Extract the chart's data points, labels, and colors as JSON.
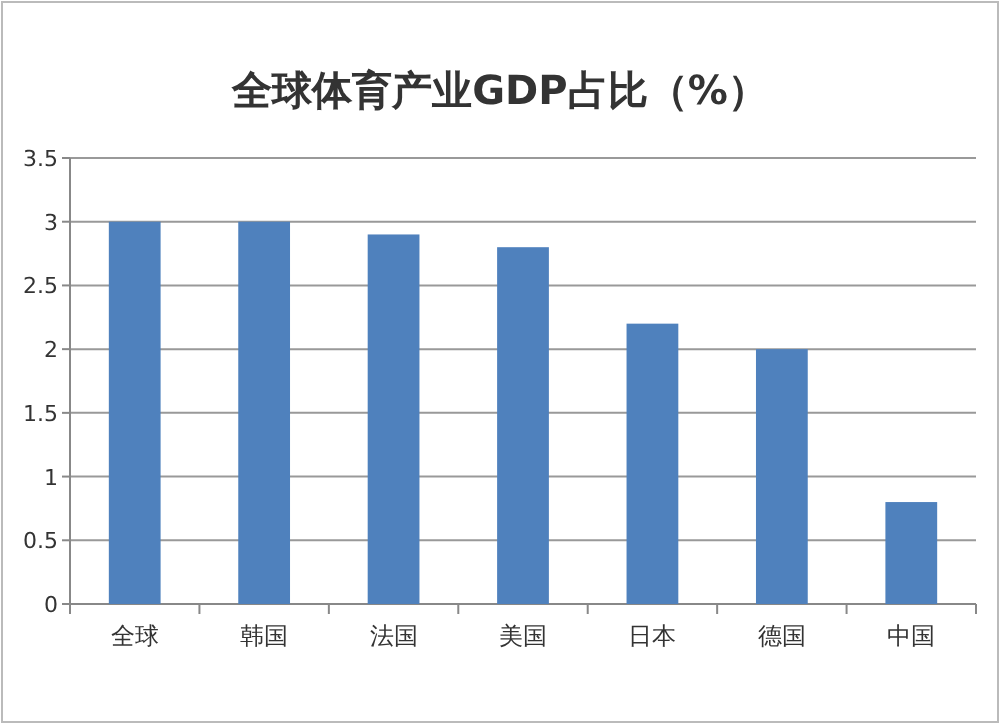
{
  "chart_data": {
    "type": "bar",
    "title": "全球体育产业GDP占比（%）",
    "categories": [
      "全球",
      "韩国",
      "法国",
      "美国",
      "日本",
      "德国",
      "中国"
    ],
    "values": [
      3.0,
      3.0,
      2.9,
      2.8,
      2.2,
      2.0,
      0.8
    ],
    "color": "#4f81bd",
    "ylim": [
      0,
      3.5
    ],
    "yticks": [
      0,
      0.5,
      1,
      1.5,
      2,
      2.5,
      3,
      3.5
    ],
    "grid": "y"
  }
}
